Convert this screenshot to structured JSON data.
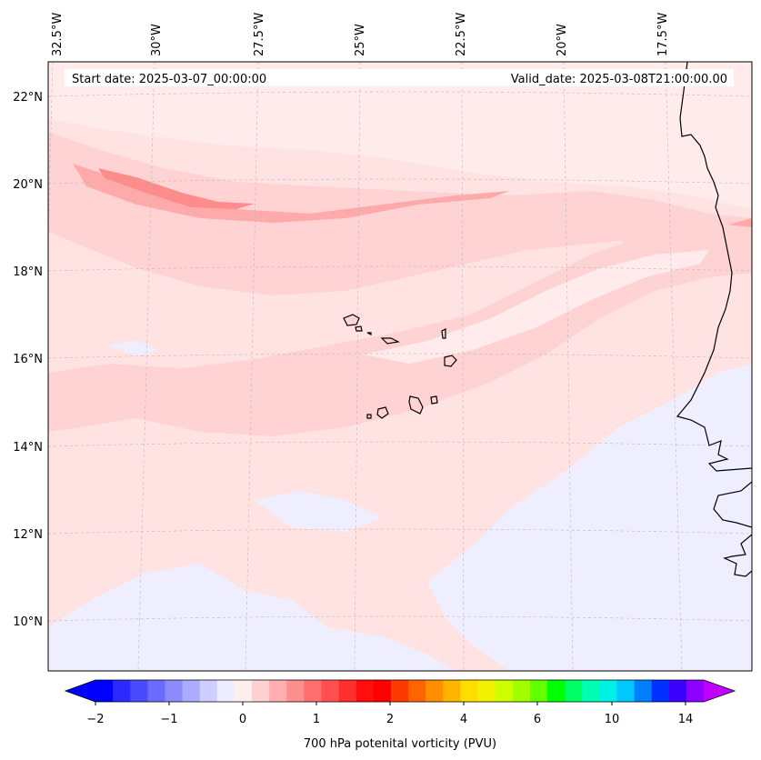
{
  "map": {
    "start_date": "Start date: 2025-03-07_00:00:00",
    "valid_date": "Valid_date: 2025-03-08T21:00:00.00",
    "lon_labels": [
      "32.5°W",
      "30°W",
      "27.5°W",
      "25°W",
      "22.5°W",
      "20°W",
      "17.5°W"
    ],
    "lat_labels": [
      "22°N",
      "20°N",
      "18°N",
      "16°N",
      "14°N",
      "12°N",
      "10°N"
    ],
    "colors": {
      "background": "#ffe3e3",
      "very_light_pink": "#ffebeb",
      "light_pink": "#ffd3d3",
      "medium_pink": "#ffaaaa",
      "dark_pink": "#ff8c8c",
      "pale_blue": "#eeeeff",
      "coastline": "#000000"
    }
  },
  "colorbar": {
    "label": "700 hPa potenital vorticity (PVU)",
    "tick_labels": [
      "−2",
      "−1",
      "0",
      "1",
      "2",
      "4",
      "6",
      "10",
      "14"
    ],
    "colors": [
      "#0000ff",
      "#2a2aff",
      "#4a4aff",
      "#6b6bff",
      "#8c8cff",
      "#ababff",
      "#cdcdff",
      "#ededff",
      "#ffeeee",
      "#ffd0d0",
      "#ffafaf",
      "#ff8f8f",
      "#ff6f6f",
      "#ff4f4f",
      "#ff2f2f",
      "#ff0e0e",
      "#ff0000",
      "#ff3a00",
      "#ff6400",
      "#ff8f00",
      "#ffb400",
      "#ffdd00",
      "#f2f200",
      "#ccff00",
      "#a2ff00",
      "#64ff00",
      "#00ff00",
      "#00ff64",
      "#00ffb4",
      "#00f0e6",
      "#00c8ff",
      "#0080ff",
      "#0030ff",
      "#3c00ff",
      "#8c00ff"
    ],
    "min_color": "#0000ff",
    "max_color": "#c000ff"
  }
}
